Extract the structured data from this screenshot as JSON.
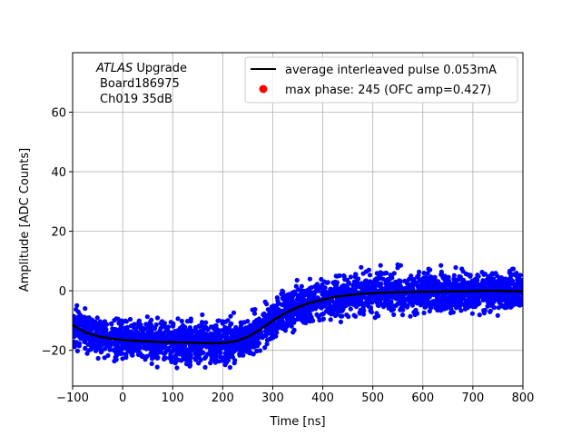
{
  "chart_data": {
    "type": "scatter",
    "title": "",
    "xlabel": "Time [ns]",
    "ylabel": "Amplitude [ADC Counts]",
    "xlim": [
      -100,
      800
    ],
    "ylim": [
      -32,
      80
    ],
    "grid": true,
    "xticks": [
      -100,
      0,
      100,
      200,
      300,
      400,
      500,
      600,
      700,
      800
    ],
    "yticks": [
      -20,
      0,
      20,
      40,
      60
    ],
    "annotation": {
      "line1_italic": "ATLAS",
      "line1_rest": " Upgrade",
      "line2": "Board186975",
      "line3": "Ch019 35dB"
    },
    "legend": {
      "placement": "top-right",
      "entries": [
        {
          "label": "average interleaved pulse 0.053mA",
          "marker": "line",
          "color": "#000000"
        },
        {
          "label": "max phase: 245 (OFC amp=0.427)",
          "marker": "dot",
          "color": "#ff0000"
        }
      ]
    },
    "series": [
      {
        "name": "samples",
        "kind": "scatter",
        "color": "#0000ff",
        "spread": 6,
        "description_source": "average curve"
      },
      {
        "name": "average interleaved pulse 0.053mA",
        "kind": "line",
        "color": "#000000",
        "x": [
          -100,
          -75,
          -50,
          -25,
          0,
          25,
          50,
          75,
          100,
          125,
          150,
          175,
          200,
          225,
          250,
          275,
          300,
          325,
          350,
          375,
          400,
          425,
          450,
          475,
          500,
          525,
          550,
          575,
          600,
          625,
          650,
          675,
          700,
          725,
          750,
          775,
          800
        ],
        "y": [
          -11.5,
          -14,
          -15.3,
          -16,
          -16.5,
          -16.8,
          -17,
          -17.2,
          -17.3,
          -17.4,
          -17.5,
          -17.6,
          -17.5,
          -17,
          -15.5,
          -13,
          -10,
          -7.5,
          -5.5,
          -4,
          -3,
          -2,
          -1.5,
          -1,
          -0.8,
          -0.6,
          -0.5,
          -0.4,
          -0.3,
          -0.3,
          -0.2,
          -0.2,
          -0.1,
          0,
          0,
          -0.1,
          -0.2
        ]
      }
    ]
  }
}
